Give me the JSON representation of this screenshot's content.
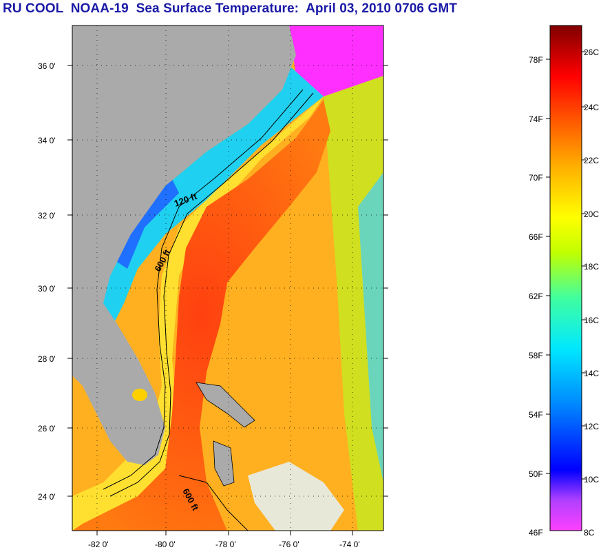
{
  "title": "RU COOL  NOAA-19  Sea Surface Temperature:  April 03, 2010 0706 GMT",
  "map": {
    "lon_ticks": [
      "-82 0'",
      "-80 0'",
      "-78 0'",
      "-76 0'",
      "-74 0'"
    ],
    "lat_ticks": [
      "36 0'",
      "34 0'",
      "32 0'",
      "30 0'",
      "28 0'",
      "26 0'",
      "24 0'"
    ],
    "contour_labels": [
      "120 ft",
      "600 ft",
      "600 ft"
    ]
  },
  "colorbar": {
    "fahrenheit": [
      "78F",
      "74F",
      "70F",
      "66F",
      "62F",
      "58F",
      "54F",
      "50F",
      "46F"
    ],
    "celsius": [
      "26C",
      "24C",
      "22C",
      "20C",
      "18C",
      "16C",
      "14C",
      "12C",
      "10C",
      "8C"
    ]
  }
}
